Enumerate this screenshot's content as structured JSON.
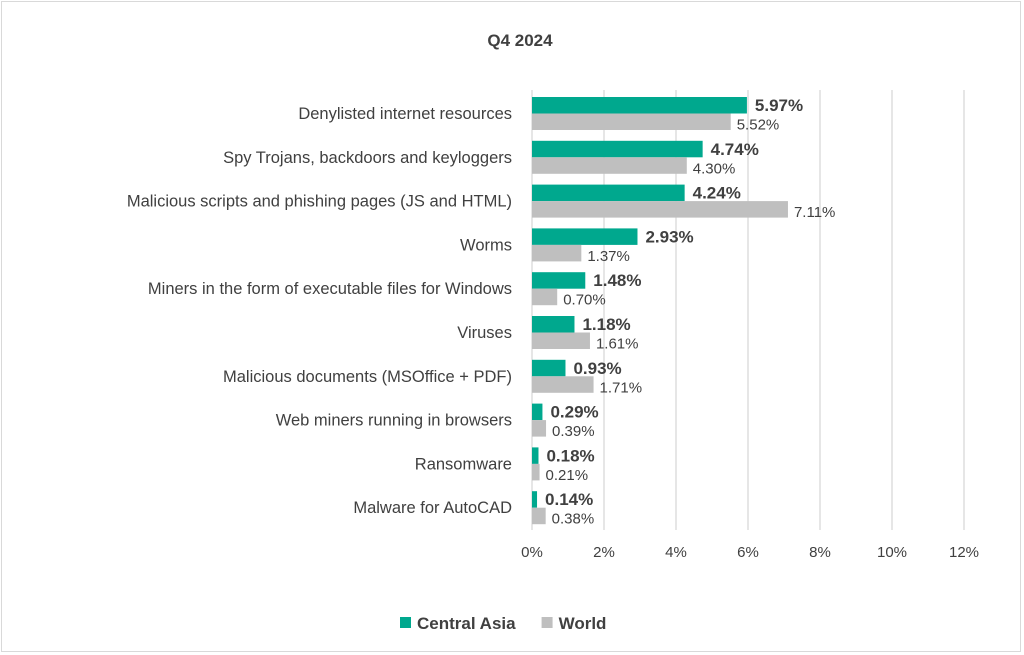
{
  "chart_data": {
    "type": "bar",
    "orientation": "horizontal",
    "title": "Q4 2024",
    "categories": [
      "Denylisted internet resources",
      "Spy Trojans, backdoors and keyloggers",
      "Malicious scripts and phishing pages (JS and HTML)",
      "Worms",
      "Miners in the form of executable files for Windows",
      "Viruses",
      "Malicious documents (MSOffice + PDF)",
      "Web miners running in browsers",
      "Ransomware",
      "Malware for AutoCAD"
    ],
    "series": [
      {
        "name": "Central Asia",
        "color": "#00A88E",
        "values": [
          5.97,
          4.74,
          4.24,
          2.93,
          1.48,
          1.18,
          0.93,
          0.29,
          0.18,
          0.14
        ]
      },
      {
        "name": "World",
        "color": "#BFBFBF",
        "values": [
          5.52,
          4.3,
          7.11,
          1.37,
          0.7,
          1.61,
          1.71,
          0.39,
          0.21,
          0.38
        ]
      }
    ],
    "xlim": [
      0,
      12
    ],
    "xticks": [
      0,
      2,
      4,
      6,
      8,
      10,
      12
    ],
    "xtick_labels": [
      "0%",
      "2%",
      "4%",
      "6%",
      "8%",
      "10%",
      "12%"
    ],
    "xlabel": "",
    "ylabel": "",
    "grid": true,
    "legend_position": "bottom"
  }
}
